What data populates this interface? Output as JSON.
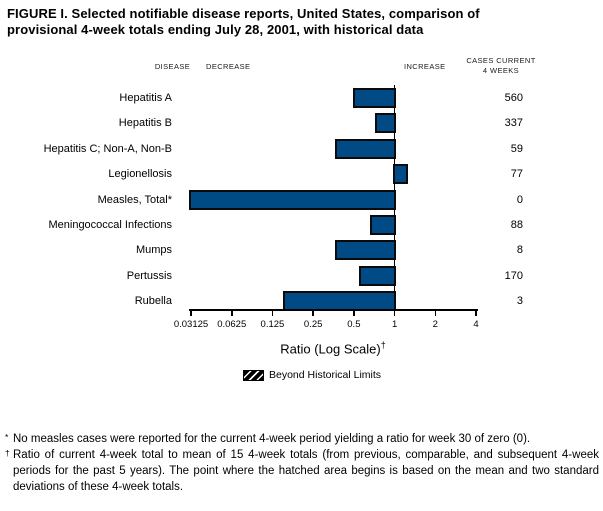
{
  "figure": {
    "title_line1": "FIGURE I. Selected notifiable disease reports, United States, comparison of",
    "title_line2": "provisional 4-week totals ending July 28, 2001, with historical data"
  },
  "column_headers": {
    "disease": "DISEASE",
    "decrease": "DECREASE",
    "increase": "INCREASE",
    "cases_line1": "CASES CURRENT",
    "cases_line2": "4 WEEKS"
  },
  "chart_data": {
    "type": "bar",
    "orientation": "horizontal",
    "scale": "log2",
    "title": "Selected notifiable disease reports, ratio of current 4-week totals to historical data",
    "xlabel": "Ratio (Log Scale)",
    "xlabel_sup": "†",
    "baseline_value": 1,
    "xlim": [
      0.03125,
      4
    ],
    "categories": [
      "Hepatitis A",
      "Hepatitis B",
      "Hepatitis C; Non-A, Non-B",
      "Legionellosis",
      "Measles, Total*",
      "Meningococcal Infections",
      "Mumps",
      "Pertussis",
      "Rubella"
    ],
    "series": [
      {
        "name": "Ratio",
        "values": [
          0.49,
          0.72,
          0.36,
          1.25,
          0,
          0.66,
          0.36,
          0.55,
          0.15
        ]
      },
      {
        "name": "Cases Current 4 Weeks",
        "values": [
          "560",
          "337",
          "59",
          "77",
          "0",
          "88",
          "8",
          "170",
          "3"
        ]
      }
    ],
    "axis_ticks": [
      "0.03125",
      "0.0625",
      "0.125",
      "0.25",
      "0.5",
      "1",
      "2",
      "4"
    ],
    "bar_color": "#004a85",
    "bar_border_color": "#0b0b0b",
    "legend": {
      "label": "Beyond Historical Limits",
      "swatch_style": "black with white diagonal hatch"
    },
    "grid": false
  },
  "footnotes": [
    {
      "marker": "*",
      "text": "No measles cases were reported for the current 4-week period yielding a ratio for week 30 of zero (0)."
    },
    {
      "marker": "†",
      "text": "Ratio of current 4-week total to mean of 15 4-week totals (from previous, comparable, and subsequent 4-week periods for the past 5 years). The point where the hatched area begins is based on the mean and two standard deviations of these 4-week totals."
    }
  ]
}
